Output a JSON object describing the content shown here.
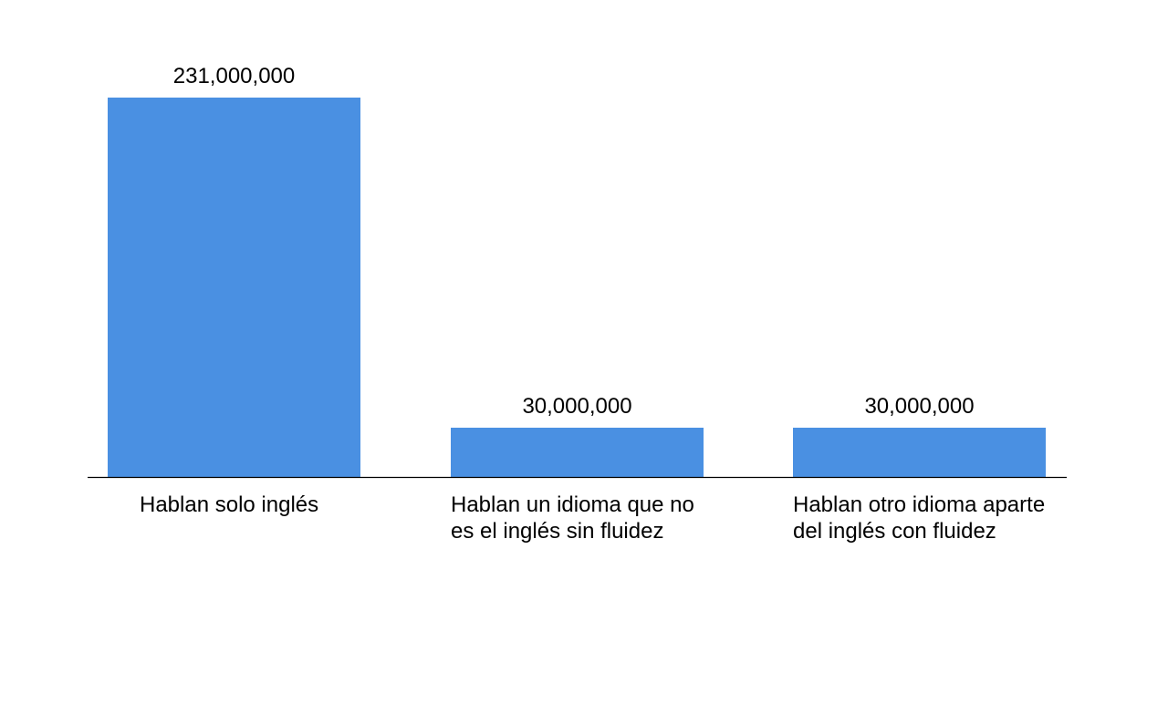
{
  "chart_data": {
    "type": "bar",
    "categories": [
      [
        "Hablan solo inglés"
      ],
      [
        "Hablan un idioma que no",
        "es el inglés sin fluidez"
      ],
      [
        "Hablan otro idioma aparte",
        "del inglés con fluidez"
      ]
    ],
    "values": [
      231000000,
      30000000,
      30000000
    ],
    "value_labels": [
      "231,000,000",
      "30,000,000",
      "30,000,000"
    ],
    "ylim": [
      0,
      231000000
    ],
    "grid": false,
    "legend": "none",
    "title": "",
    "xlabel": "",
    "ylabel": "",
    "bar_color": "#4a90e2",
    "axis_color": "#000000"
  }
}
